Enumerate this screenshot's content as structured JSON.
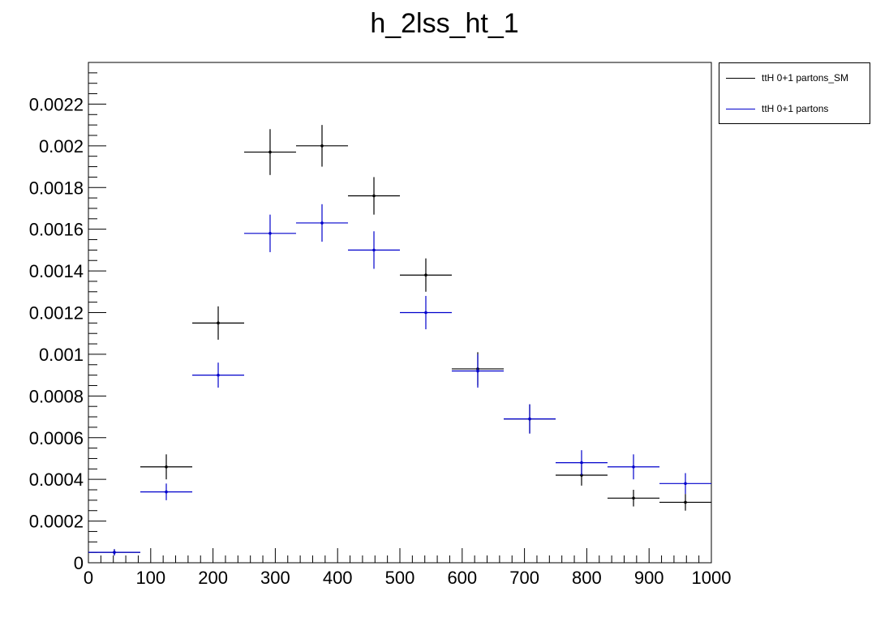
{
  "chart_data": {
    "type": "scatter",
    "title": "h_2lss_ht_1",
    "xlabel": "",
    "ylabel": "",
    "xlim": [
      0,
      1000
    ],
    "ylim": [
      0,
      0.0024
    ],
    "grid": false,
    "legend_position": "top-right",
    "x_ticks": [
      "0",
      "100",
      "200",
      "300",
      "400",
      "500",
      "600",
      "700",
      "800",
      "900",
      "1000"
    ],
    "y_ticks": [
      "0",
      "0.0002",
      "0.0004",
      "0.0006",
      "0.0008",
      "0.001",
      "0.0012",
      "0.0014",
      "0.0016",
      "0.0018",
      "0.002",
      "0.0022"
    ],
    "bin_edges": [
      0,
      83.3,
      166.7,
      250,
      333.3,
      416.7,
      500,
      583.3,
      666.7,
      750,
      833.3,
      916.7,
      1000
    ],
    "series": [
      {
        "name": "ttH 0+1 partons_SM",
        "color": "#000000",
        "values": [
          5e-05,
          0.00046,
          0.00115,
          0.00197,
          0.002,
          0.00176,
          0.00138,
          0.00093,
          0.00069,
          0.00042,
          0.00031,
          0.00029
        ],
        "errors": [
          1.5e-05,
          6e-05,
          8e-05,
          0.00011,
          0.0001,
          9e-05,
          8e-05,
          8e-05,
          7e-05,
          5e-05,
          4e-05,
          4e-05
        ]
      },
      {
        "name": "ttH 0+1 partons",
        "color": "#0000cc",
        "values": [
          5e-05,
          0.00034,
          0.0009,
          0.00158,
          0.00163,
          0.0015,
          0.0012,
          0.00092,
          0.00069,
          0.00048,
          0.00046,
          0.00038
        ],
        "errors": [
          1.5e-05,
          4e-05,
          6e-05,
          9e-05,
          9e-05,
          9e-05,
          8e-05,
          8e-05,
          7e-05,
          6e-05,
          6e-05,
          5e-05
        ]
      }
    ]
  }
}
